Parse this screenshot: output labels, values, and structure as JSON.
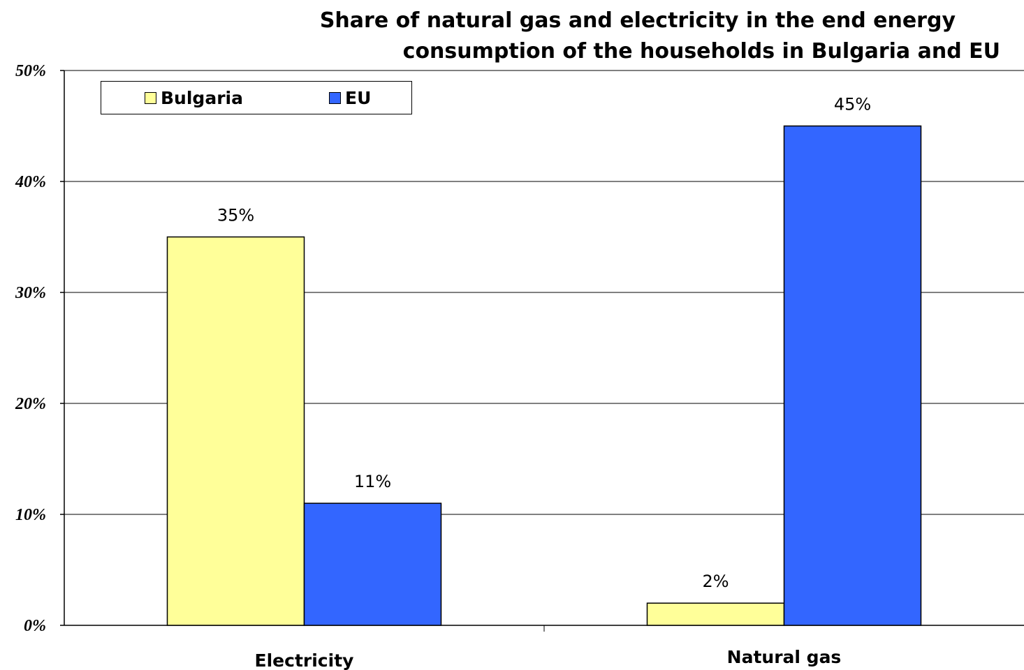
{
  "chart_data": {
    "type": "bar",
    "title_lines": [
      "Share of natural gas and electricity in the end energy",
      "consumption of the households in Bulgaria and EU"
    ],
    "categories": [
      "Electricity",
      "Natural gas"
    ],
    "series": [
      {
        "name": "Bulgaria",
        "values": [
          35,
          2
        ],
        "color": "#ffff99"
      },
      {
        "name": "EU",
        "values": [
          11,
          45
        ],
        "color": "#3366ff"
      }
    ],
    "data_labels": [
      [
        "35%",
        "2%"
      ],
      [
        "11%",
        "45%"
      ]
    ],
    "y_ticks": [
      "0%",
      "10%",
      "20%",
      "30%",
      "40%",
      "50%"
    ],
    "ylim": [
      0,
      50
    ],
    "grid": true,
    "legend_position": "top-left",
    "xlabel": "",
    "ylabel": ""
  }
}
